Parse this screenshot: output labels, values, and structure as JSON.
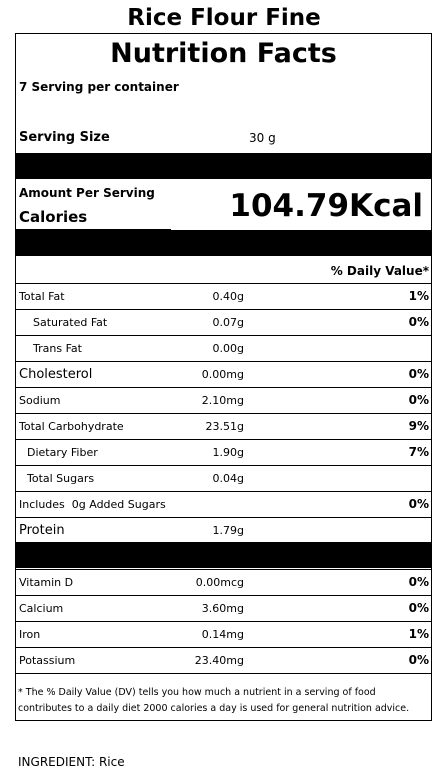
{
  "product_title": "Rice Flour Fine",
  "label": {
    "title": "Nutrition Facts",
    "servings_per_container": "7 Serving per container",
    "serving_size_label": "Serving Size",
    "serving_size_value": "30 g",
    "amount_per_serving": "Amount Per Serving",
    "calories_label": "Calories",
    "calories_value": "104.79Kcal",
    "daily_value_header": "% Daily Value*",
    "nutrients": [
      {
        "name": "Total Fat",
        "amount": "0.40g",
        "dv": "1%"
      },
      {
        "name": "Saturated Fat",
        "amount": "0.07g",
        "dv": "0%"
      },
      {
        "name": "Trans Fat",
        "amount": "0.00g",
        "dv": ""
      },
      {
        "name": "Cholesterol",
        "amount": "0.00mg",
        "dv": "0%"
      },
      {
        "name": "Sodium",
        "amount": "2.10mg",
        "dv": "0%"
      },
      {
        "name": "Total Carbohydrate",
        "amount": "23.51g",
        "dv": "9%"
      },
      {
        "name": "Dietary Fiber",
        "amount": "1.90g",
        "dv": "7%"
      },
      {
        "name": "Total Sugars",
        "amount": "0.04g",
        "dv": ""
      },
      {
        "name": "Includes  0g Added Sugars",
        "amount": "",
        "dv": "0%"
      },
      {
        "name": "Protein",
        "amount": "1.79g",
        "dv": ""
      }
    ],
    "vitamins": [
      {
        "name": "Vitamin D",
        "amount": "0.00mcg",
        "dv": "0%"
      },
      {
        "name": "Calcium",
        "amount": "3.60mg",
        "dv": "0%"
      },
      {
        "name": "Iron",
        "amount": "0.14mg",
        "dv": "1%"
      },
      {
        "name": "Potassium",
        "amount": "23.40mg",
        "dv": "0%"
      }
    ],
    "footnote": "* The % Daily Value (DV) tells you how much a nutrient in a serving of food contributes to a daily diet 2000 calories a day is used for general nutrition advice."
  },
  "ingredients": "INGREDIENT: Rice"
}
